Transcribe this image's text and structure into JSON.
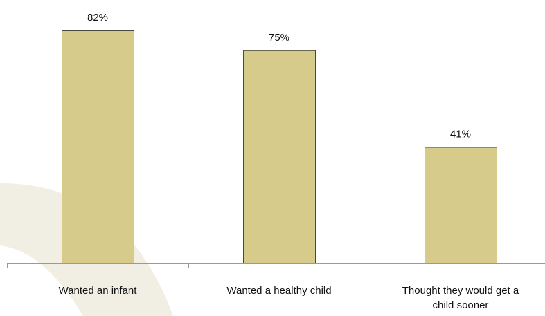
{
  "chart_data": {
    "type": "bar",
    "categories": [
      [
        "Wanted an infant"
      ],
      [
        "Wanted a healthy child"
      ],
      [
        "Thought they would get a",
        "child sooner"
      ]
    ],
    "values": [
      82,
      75,
      41
    ],
    "value_labels": [
      "82%",
      "75%",
      "41%"
    ],
    "unit": "%",
    "ylim": [
      0,
      90
    ],
    "grid": false,
    "legend": "none",
    "colors": {
      "bar_fill": "#d6cb8b",
      "bar_stroke": "#4a4a3a",
      "axis": "#999999",
      "background_arc": "#f1eee3"
    }
  }
}
